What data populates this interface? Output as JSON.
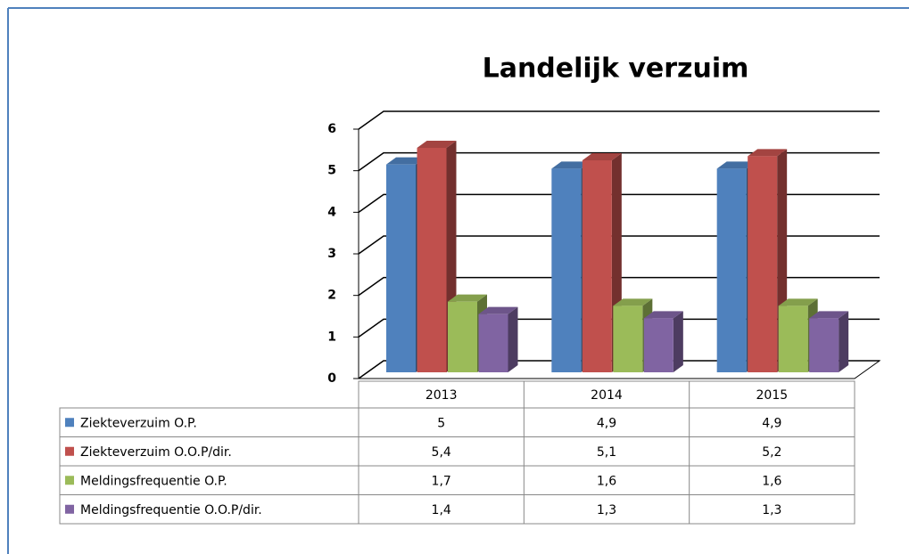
{
  "chart_data": {
    "type": "bar3d",
    "title": "Landelijk verzuim",
    "categories": [
      "2013",
      "2014",
      "2015"
    ],
    "series": [
      {
        "name": "Ziekteverzuim O.P.",
        "color": "#4f81bd",
        "values": [
          5,
          4.9,
          4.9
        ],
        "value_labels": [
          "5",
          "4,9",
          "4,9"
        ]
      },
      {
        "name": "Ziekteverzuim O.O.P/dir.",
        "color": "#c0504d",
        "values": [
          5.4,
          5.1,
          5.2
        ],
        "value_labels": [
          "5,4",
          "5,1",
          "5,2"
        ]
      },
      {
        "name": "Meldingsfrequentie O.P.",
        "color": "#9bbb59",
        "values": [
          1.7,
          1.6,
          1.6
        ],
        "value_labels": [
          "1,7",
          "1,6",
          "1,6"
        ]
      },
      {
        "name": "Meldingsfrequentie O.O.P/dir.",
        "color": "#8064a2",
        "values": [
          1.4,
          1.3,
          1.3
        ],
        "value_labels": [
          "1,4",
          "1,3",
          "1,3"
        ]
      }
    ],
    "ylim": [
      0,
      6
    ],
    "yticks": [
      0,
      1,
      2,
      3,
      4,
      5,
      6
    ],
    "grid": true,
    "data_table": true
  }
}
